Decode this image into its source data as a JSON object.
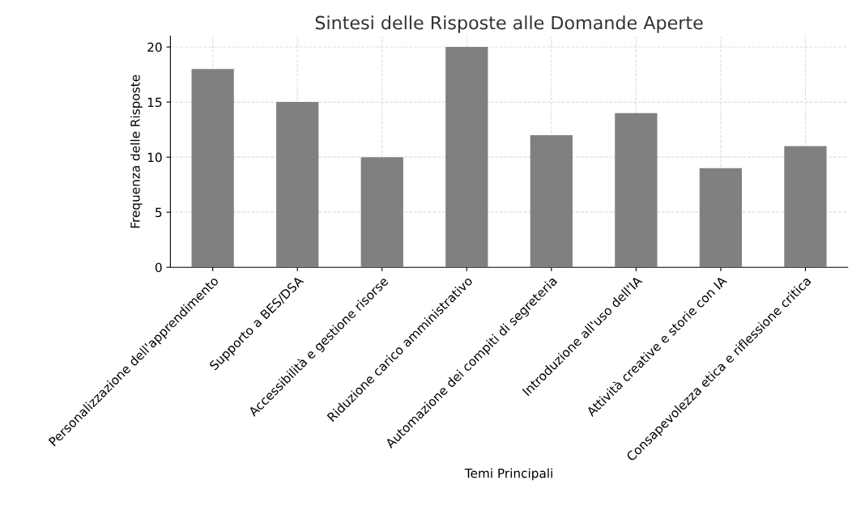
{
  "chart_data": {
    "type": "bar",
    "title": "Sintesi delle Risposte alle Domande Aperte",
    "xlabel": "Temi Principali",
    "ylabel": "Frequenza delle Risposte",
    "categories": [
      "Personalizzazione dell'apprendimento",
      "Supporto a BES/DSA",
      "Accessibilità e gestione risorse",
      "Riduzione carico amministrativo",
      "Automazione dei compiti di segreteria",
      "Introduzione all'uso dell'IA",
      "Attività creative e storie con IA",
      "Consapevolezza etica e riflessione critica"
    ],
    "values": [
      18,
      15,
      10,
      20,
      12,
      14,
      9,
      11
    ],
    "color": "#808080",
    "ylim": [
      0,
      21
    ],
    "yticks": [
      0,
      5,
      10,
      15,
      20
    ],
    "grid": true
  }
}
